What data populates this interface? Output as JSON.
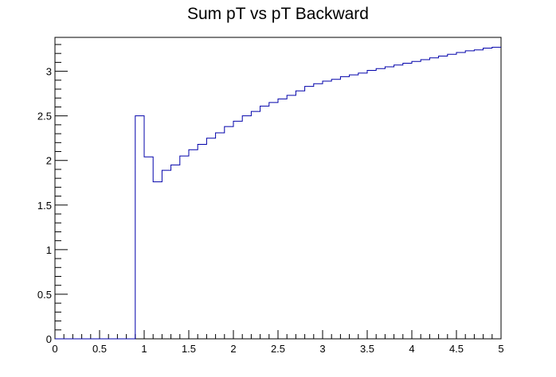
{
  "chart_data": {
    "type": "histogram",
    "title": "Sum pT vs pT Backward",
    "xlabel": "",
    "ylabel": "",
    "xlim": [
      0,
      5
    ],
    "ylim": [
      0,
      3.38
    ],
    "bin_width": 0.1,
    "x_ticks": [
      "0",
      "0.5",
      "1",
      "1.5",
      "2",
      "2.5",
      "3",
      "3.5",
      "4",
      "4.5",
      "5"
    ],
    "y_ticks": [
      "0",
      "0.5",
      "1",
      "1.5",
      "2",
      "2.5",
      "3"
    ],
    "x_tick_values": [
      0,
      0.5,
      1,
      1.5,
      2,
      2.5,
      3,
      3.5,
      4,
      4.5,
      5
    ],
    "y_tick_values": [
      0,
      0.5,
      1,
      1.5,
      2,
      2.5,
      3
    ],
    "bin_edges_start": 0.9,
    "values": [
      2.5,
      2.04,
      1.76,
      1.89,
      1.95,
      2.05,
      2.12,
      2.18,
      2.25,
      2.31,
      2.38,
      2.44,
      2.5,
      2.55,
      2.61,
      2.65,
      2.69,
      2.73,
      2.78,
      2.83,
      2.86,
      2.89,
      2.91,
      2.94,
      2.96,
      2.98,
      3.01,
      3.03,
      3.05,
      3.07,
      3.09,
      3.11,
      3.13,
      3.15,
      3.17,
      3.19,
      3.21,
      3.23,
      3.24,
      3.26,
      3.27
    ],
    "line_color": "#0000aa",
    "axis_color": "#000000",
    "grid": false
  }
}
